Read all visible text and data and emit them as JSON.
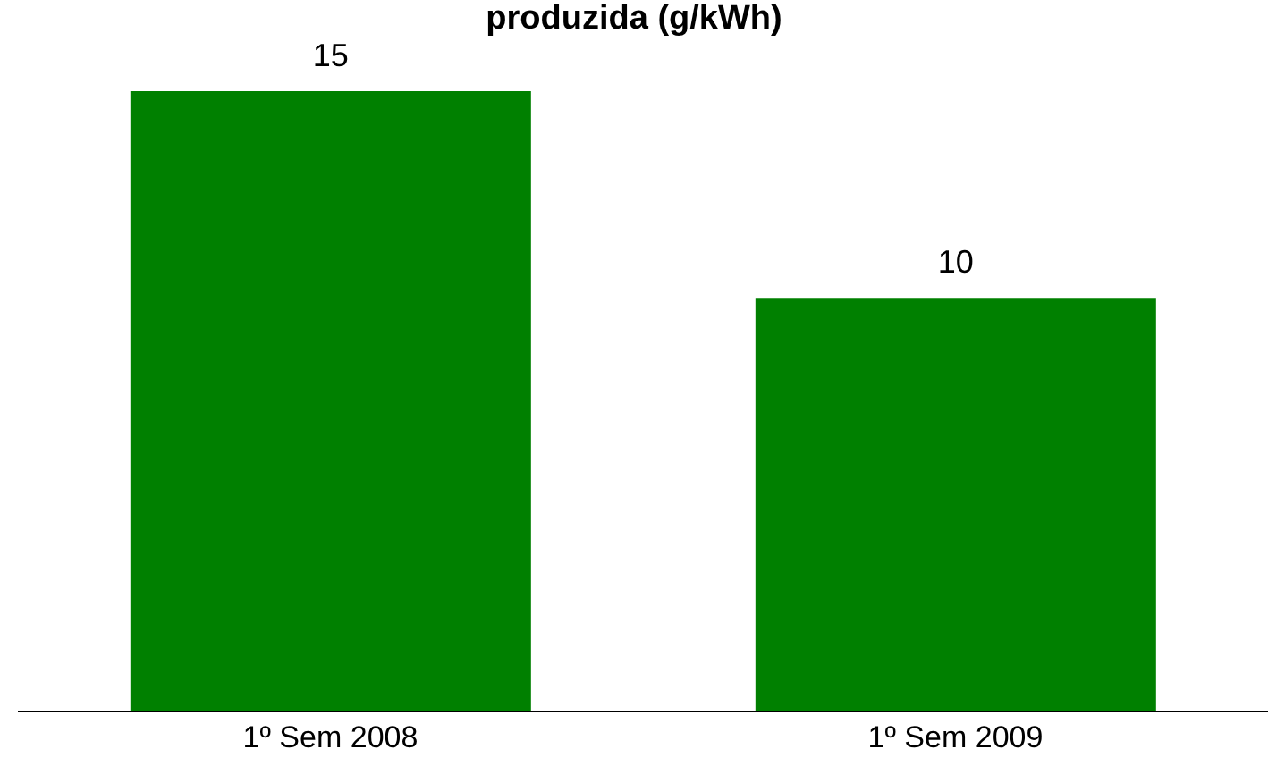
{
  "chart_data": {
    "type": "bar",
    "title": "produzida (g/kWh)",
    "categories": [
      "1º Sem 2008",
      "1º Sem 2009"
    ],
    "values": [
      15,
      10
    ],
    "color": "#008000",
    "data_labels": true,
    "grid": false,
    "legend": false
  }
}
